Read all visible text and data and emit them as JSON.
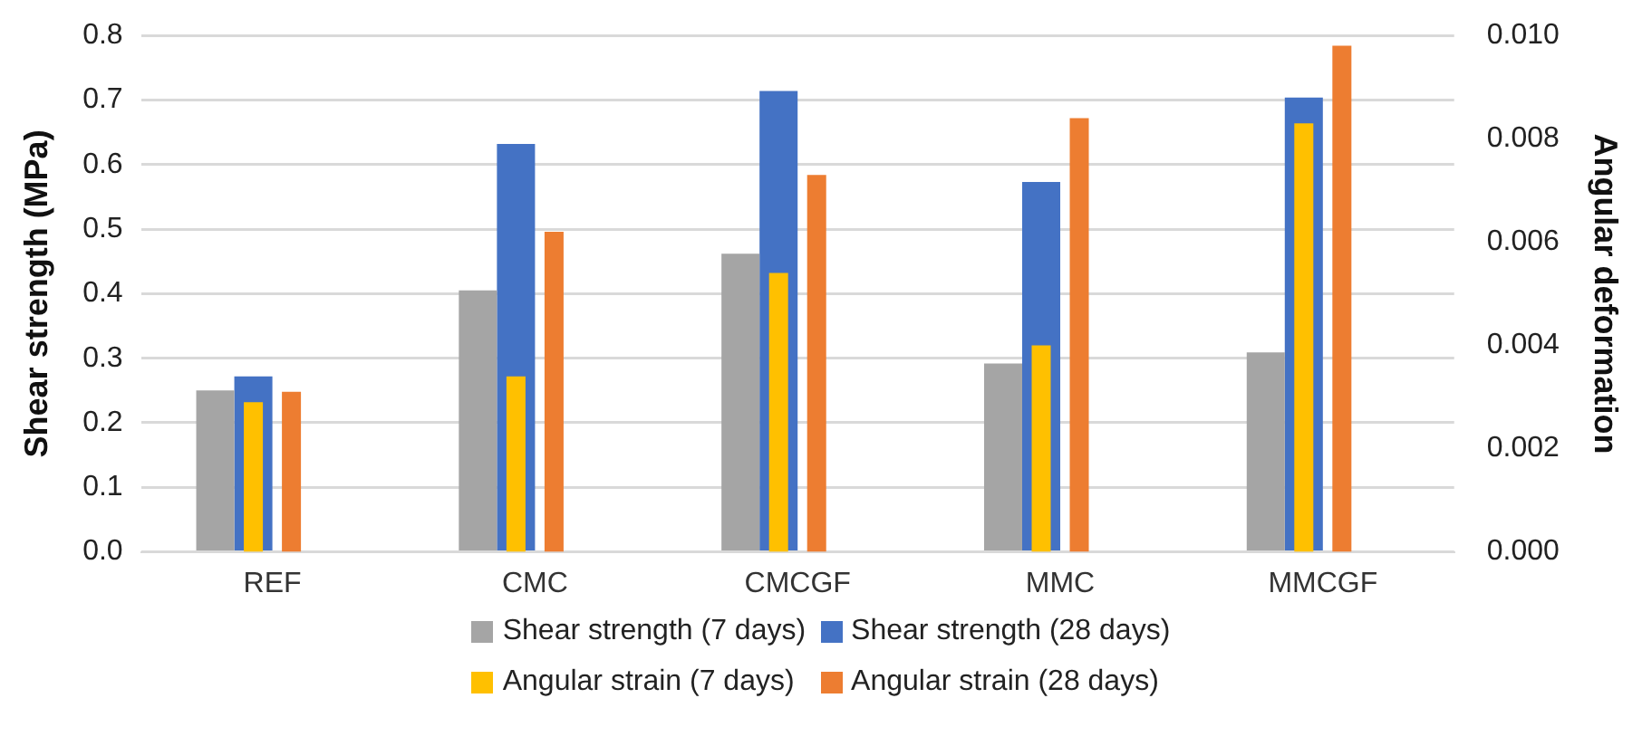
{
  "chart_data": {
    "type": "bar",
    "categories": [
      "REF",
      "CMC",
      "CMCGF",
      "MMC",
      "MMCGF"
    ],
    "ylabel": "Shear strength (MPa)",
    "y2label": "Angular deformation",
    "ylim": [
      0,
      0.8
    ],
    "yticks": [
      {
        "value": 0,
        "label": "0.0"
      },
      0.1,
      0.2,
      0.3,
      0.4,
      0.5,
      0.6,
      0.7,
      0.8
    ],
    "y2lim": [
      0,
      0.01
    ],
    "y2ticks": [
      {
        "value": 0,
        "label": "0.000"
      },
      0.002,
      0.004,
      0.006,
      0.008,
      {
        "value": 0.01,
        "label": "0.010"
      }
    ],
    "grid": "y",
    "legend": "bottom",
    "series": [
      {
        "name": "Shear strength (7 days)",
        "color": "#a5a5a5",
        "values": [
          0.25,
          0.405,
          0.462,
          0.292,
          0.309
        ]
      },
      {
        "name": "Shear strength (28 days)",
        "color": "#4472c4",
        "values": [
          0.272,
          0.632,
          0.714,
          0.573,
          0.704
        ]
      },
      {
        "name": "Angular strain (7 days)",
        "color": "#ffc000",
        "axis": "y2",
        "values": [
          0.0029,
          0.0034,
          0.0054,
          0.004,
          0.0083
        ]
      },
      {
        "name": "Angular strain (28 days)",
        "color": "#ed7d31",
        "axis": "y2",
        "values": [
          0.0031,
          0.0062,
          0.0073,
          0.0084,
          0.0098
        ]
      }
    ]
  }
}
